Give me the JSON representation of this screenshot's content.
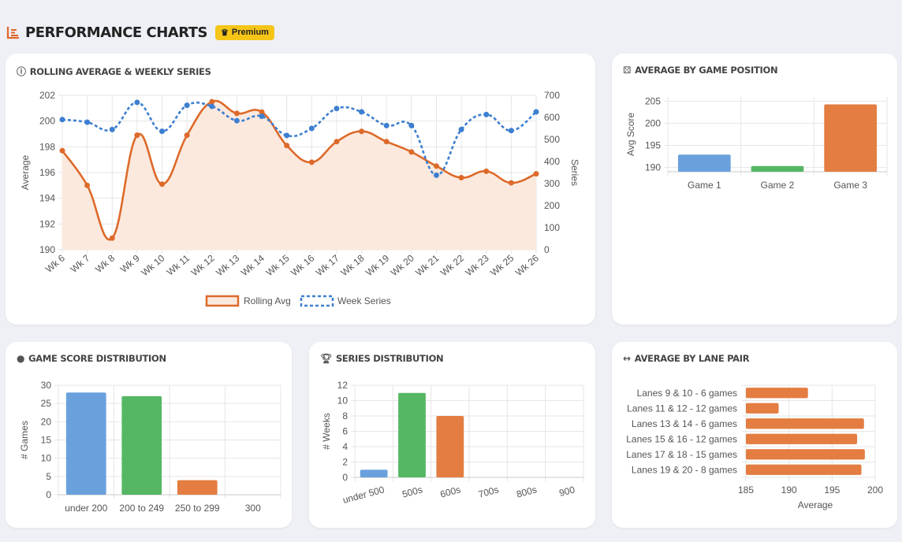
{
  "header": {
    "title": "PERFORMANCE CHARTS",
    "badge": "Premium",
    "icon": "bar-chart-icon",
    "badge_icon": "crown-icon"
  },
  "colors": {
    "orange": "#dd6a2a",
    "orange_fill": "#fbe9de",
    "blue": "#3d7fd0",
    "blue_bar": "#6aa1dd",
    "green": "#55b764",
    "bar_orange": "#e47d41",
    "grid": "#e6e6e6"
  },
  "cards": {
    "rolling": {
      "title": "ROLLING AVERAGE & WEEKLY SERIES",
      "icon": "info-icon"
    },
    "position": {
      "title": "AVERAGE BY GAME POSITION",
      "icon": "dice-icon"
    },
    "score_dist": {
      "title": "GAME SCORE DISTRIBUTION",
      "icon": "bowling-ball-icon"
    },
    "series_dist": {
      "title": "SERIES DISTRIBUTION",
      "icon": "trophy-icon"
    },
    "lane": {
      "title": "AVERAGE BY LANE PAIR",
      "icon": "arrows-horizontal-icon"
    }
  },
  "chart_data": [
    {
      "id": "rolling",
      "type": "line",
      "categories": [
        "Wk 6",
        "Wk 7",
        "Wk 8",
        "Wk 9",
        "Wk 10",
        "Wk 11",
        "Wk 12",
        "Wk 13",
        "Wk 14",
        "Wk 15",
        "Wk 16",
        "Wk 17",
        "Wk 18",
        "Wk 19",
        "Wk 20",
        "Wk 21",
        "Wk 22",
        "Wk 23",
        "Wk 25",
        "Wk 26"
      ],
      "series": [
        {
          "name": "Rolling Avg",
          "axis": "left",
          "values": [
            197.7,
            195.0,
            190.9,
            198.9,
            195.1,
            198.9,
            201.5,
            200.6,
            200.7,
            198.1,
            196.8,
            198.4,
            199.2,
            198.4,
            197.6,
            196.5,
            195.6,
            196.1,
            195.2,
            195.9
          ]
        },
        {
          "name": "Week Series",
          "axis": "right",
          "values": [
            590,
            578,
            545,
            668,
            537,
            655,
            650,
            585,
            605,
            518,
            550,
            640,
            625,
            563,
            563,
            338,
            545,
            613,
            540,
            625
          ]
        }
      ],
      "ylabel": "Average",
      "y2label": "Series",
      "ylim": [
        190,
        202
      ],
      "yticks": [
        190,
        192,
        194,
        196,
        198,
        200,
        202
      ],
      "y2lim": [
        0,
        700
      ],
      "y2ticks": [
        0,
        100,
        200,
        300,
        400,
        500,
        600,
        700
      ],
      "legend": "bottom",
      "grid": true
    },
    {
      "id": "position",
      "type": "bar",
      "categories": [
        "Game 1",
        "Game 2",
        "Game 3"
      ],
      "values": [
        192.9,
        190.3,
        204.3
      ],
      "ylabel": "Avg Score",
      "ylim": [
        189,
        206
      ],
      "yticks": [
        190,
        195,
        200,
        205
      ],
      "grid": true
    },
    {
      "id": "score_dist",
      "type": "bar",
      "categories": [
        "under 200",
        "200 to 249",
        "250 to 299",
        "300"
      ],
      "values": [
        28,
        27,
        4,
        0
      ],
      "ylabel": "# Games",
      "ylim": [
        0,
        30
      ],
      "yticks": [
        0,
        5,
        10,
        15,
        20,
        25,
        30
      ],
      "grid": true
    },
    {
      "id": "series_dist",
      "type": "bar",
      "categories": [
        "under 500",
        "500s",
        "600s",
        "700s",
        "800s",
        "900"
      ],
      "values": [
        1,
        11,
        8,
        0,
        0,
        0
      ],
      "ylabel": "# Weeks",
      "ylim": [
        0,
        12
      ],
      "yticks": [
        0,
        2,
        4,
        6,
        8,
        10,
        12
      ],
      "grid": true
    },
    {
      "id": "lane",
      "type": "bar",
      "orientation": "horizontal",
      "categories": [
        "Lanes 9 & 10 - 6 games",
        "Lanes 11 & 12 - 12 games",
        "Lanes 13 & 14 - 6 games",
        "Lanes 15 & 16 - 12 games",
        "Lanes 17 & 18 - 15 games",
        "Lanes 19 & 20 - 8 games"
      ],
      "values": [
        192.2,
        188.8,
        198.7,
        197.9,
        198.8,
        198.4
      ],
      "xlabel": "Average",
      "xlim": [
        185,
        200
      ],
      "xticks": [
        185,
        190,
        195,
        200
      ],
      "grid": true
    }
  ]
}
